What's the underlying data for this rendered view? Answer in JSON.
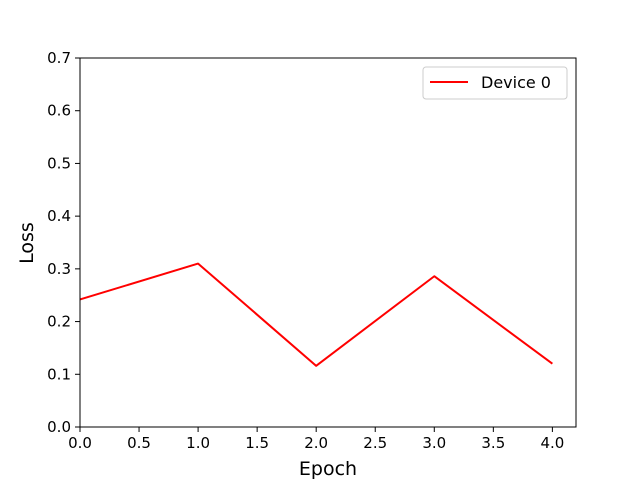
{
  "chart_data": {
    "type": "line",
    "title": "",
    "xlabel": "Epoch",
    "ylabel": "Loss",
    "xlim": [
      0.0,
      4.2
    ],
    "ylim": [
      0.0,
      0.7
    ],
    "xticks": [
      "0.0",
      "0.5",
      "1.0",
      "1.5",
      "2.0",
      "2.5",
      "3.0",
      "3.5",
      "4.0"
    ],
    "yticks": [
      "0.0",
      "0.1",
      "0.2",
      "0.3",
      "0.4",
      "0.5",
      "0.6",
      "0.7"
    ],
    "grid": false,
    "legend_position": "top-right",
    "series": [
      {
        "name": "Device 0",
        "color": "#ff0000",
        "x": [
          0,
          1,
          2,
          3,
          4
        ],
        "y": [
          0.242,
          0.31,
          0.116,
          0.286,
          0.12
        ]
      }
    ]
  }
}
